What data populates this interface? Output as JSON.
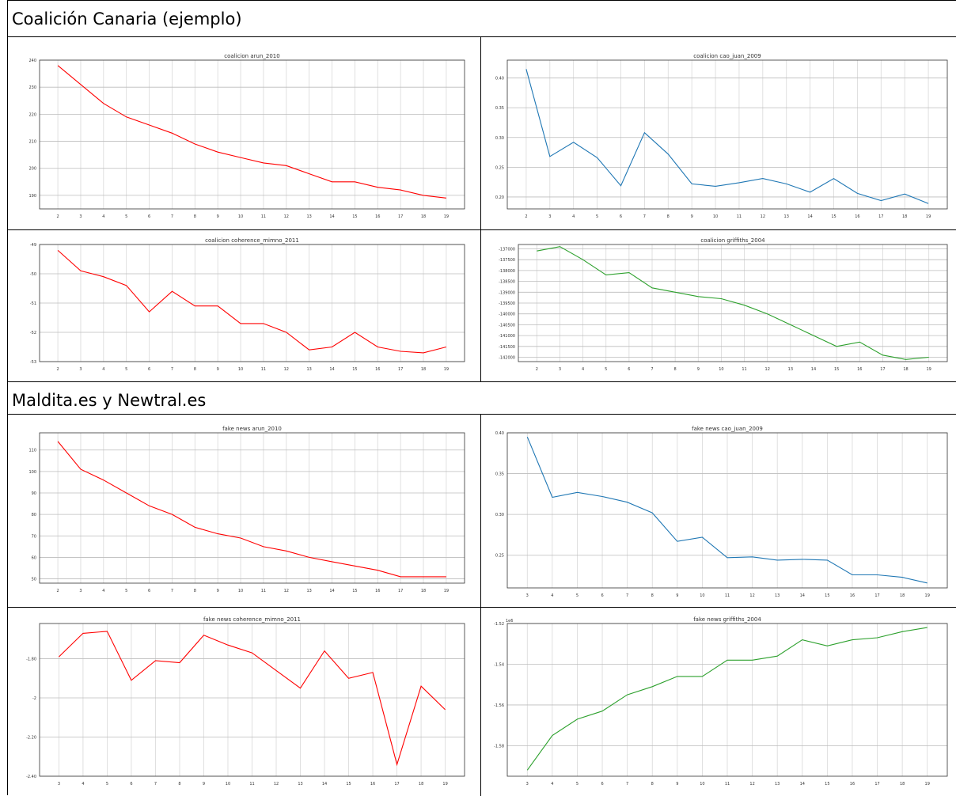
{
  "sections": {
    "top_title": "Coalición Canaria (ejemplo)",
    "bottom_title": "Maldita.es y Newtral.es"
  },
  "colors": {
    "red": "#ff0000",
    "blue": "#1f77b4",
    "green": "#2ca02c"
  },
  "chart_data": [
    {
      "type": "line",
      "title": "coalicion arun_2010",
      "x": [
        2,
        3,
        4,
        5,
        6,
        7,
        8,
        9,
        10,
        11,
        12,
        13,
        14,
        15,
        16,
        17,
        18,
        19
      ],
      "values": [
        238,
        231,
        224,
        219,
        216,
        213,
        209,
        206,
        204,
        202,
        201,
        198,
        195,
        195,
        193,
        192,
        190,
        189
      ],
      "xlabel": "",
      "ylabel": "",
      "ylim": [
        185,
        240
      ],
      "yticks": [
        240,
        230,
        220,
        210,
        200,
        190
      ],
      "grid": true,
      "color": "red"
    },
    {
      "type": "line",
      "title": "coalicion cao_juan_2009",
      "x": [
        2,
        3,
        4,
        5,
        6,
        7,
        8,
        9,
        10,
        11,
        12,
        13,
        14,
        15,
        16,
        17,
        18,
        19
      ],
      "values": [
        0.415,
        0.268,
        0.292,
        0.266,
        0.219,
        0.308,
        0.272,
        0.222,
        0.218,
        0.224,
        0.231,
        0.222,
        0.208,
        0.231,
        0.206,
        0.194,
        0.205,
        0.189
      ],
      "xlabel": "",
      "ylabel": "",
      "ylim": [
        0.18,
        0.43
      ],
      "yticks": [
        0.4,
        0.35,
        0.3,
        0.25,
        0.2
      ],
      "grid": true,
      "color": "blue"
    },
    {
      "type": "line",
      "title": "coalicion coherence_mimno_2011",
      "x": [
        2,
        3,
        4,
        5,
        6,
        7,
        8,
        9,
        10,
        11,
        12,
        13,
        14,
        15,
        16,
        17,
        18,
        19
      ],
      "values": [
        -49.2,
        -49.9,
        -50.1,
        -50.4,
        -51.3,
        -50.6,
        -51.1,
        -51.1,
        -51.7,
        -51.7,
        -52.0,
        -52.6,
        -52.5,
        -52.0,
        -52.5,
        -52.65,
        -52.7,
        -52.5
      ],
      "xlabel": "",
      "ylabel": "",
      "ylim": [
        -53,
        -49
      ],
      "yticks": [
        -49,
        -50,
        -51,
        -52,
        -53
      ],
      "grid": true,
      "color": "red"
    },
    {
      "type": "line",
      "title": "coalicion griffiths_2004",
      "x": [
        2,
        3,
        4,
        5,
        6,
        7,
        8,
        9,
        10,
        11,
        12,
        13,
        14,
        15,
        16,
        17,
        18,
        19
      ],
      "values": [
        -137100,
        -136900,
        -137500,
        -138200,
        -138100,
        -138800,
        -139000,
        -139200,
        -139300,
        -139600,
        -140000,
        -140500,
        -141000,
        -141500,
        -141300,
        -141900,
        -142100,
        -142000
      ],
      "xlabel": "",
      "ylabel": "",
      "ylim": [
        -142200,
        -136800
      ],
      "yticks": [
        -137000,
        -137500,
        -138000,
        -138500,
        -139000,
        -139500,
        -140000,
        -140500,
        -141000,
        -141500,
        -142000
      ],
      "grid": true,
      "color": "green"
    },
    {
      "type": "line",
      "title": "fake news arun_2010",
      "x": [
        2,
        3,
        4,
        5,
        6,
        7,
        8,
        9,
        10,
        11,
        12,
        13,
        14,
        15,
        16,
        17,
        18,
        19
      ],
      "values": [
        114,
        101,
        96,
        90,
        84,
        80,
        74,
        71,
        69,
        65,
        63,
        60,
        58,
        56,
        54,
        51,
        51,
        51
      ],
      "xlabel": "",
      "ylabel": "",
      "ylim": [
        48,
        118
      ],
      "yticks": [
        110,
        100,
        90,
        80,
        70,
        60,
        50
      ],
      "grid": true,
      "color": "red"
    },
    {
      "type": "line",
      "title": "fake news cao_juan_2009",
      "x": [
        3,
        4,
        5,
        6,
        7,
        8,
        9,
        10,
        11,
        12,
        13,
        14,
        15,
        16,
        17,
        18,
        19
      ],
      "values": [
        0.395,
        0.321,
        0.327,
        0.322,
        0.315,
        0.302,
        0.267,
        0.272,
        0.247,
        0.248,
        0.244,
        0.245,
        0.244,
        0.226,
        0.226,
        0.223,
        0.216
      ],
      "xlabel": "",
      "ylabel": "",
      "ylim": [
        0.21,
        0.4
      ],
      "yticks": [
        0.4,
        0.35,
        0.3,
        0.25,
        0.2
      ],
      "grid": true,
      "color": "blue"
    },
    {
      "type": "line",
      "title": "fake news coherence_mimno_2011",
      "x": [
        3,
        4,
        5,
        6,
        7,
        8,
        9,
        10,
        11,
        12,
        13,
        14,
        15,
        16,
        17,
        18,
        19
      ],
      "values": [
        -1.79,
        -1.67,
        -1.66,
        -1.91,
        -1.81,
        -1.82,
        -1.68,
        -1.73,
        -1.77,
        -1.86,
        -1.95,
        -1.76,
        -1.9,
        -1.87,
        -2.34,
        -1.94,
        -2.06
      ],
      "xlabel": "",
      "ylabel": "",
      "ylim": [
        -2.4,
        -1.62
      ],
      "yticks": [
        -1.6,
        -1.8,
        -2.0,
        -2.2,
        -2.4
      ],
      "grid": true,
      "color": "red"
    },
    {
      "type": "line",
      "title": "fake news griffiths_2004",
      "x": [
        3,
        4,
        5,
        6,
        7,
        8,
        9,
        10,
        11,
        12,
        13,
        14,
        15,
        16,
        17,
        18,
        19
      ],
      "values": [
        -1.592,
        -1.575,
        -1.567,
        -1.563,
        -1.555,
        -1.551,
        -1.546,
        -1.546,
        -1.538,
        -1.538,
        -1.536,
        -1.528,
        -1.531,
        -1.528,
        -1.527,
        -1.524,
        -1.522
      ],
      "xlabel": "",
      "ylabel": "",
      "ylim": [
        -1.595,
        -1.52
      ],
      "yticks": [
        -1.52,
        -1.54,
        -1.56,
        -1.58
      ],
      "yprefix": "1e6",
      "grid": true,
      "color": "green"
    }
  ]
}
